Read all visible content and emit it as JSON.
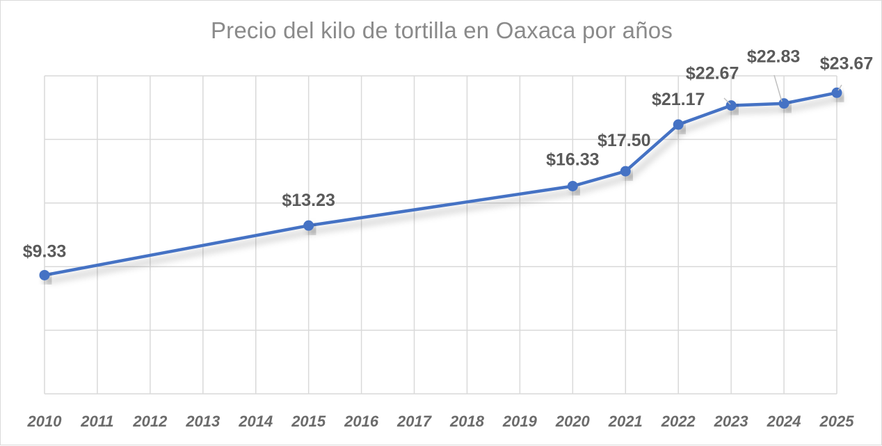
{
  "chart_data": {
    "type": "line",
    "title": "Precio del kilo de tortilla en Oaxaca por años",
    "xlabel": "",
    "ylabel": "",
    "categories": [
      "2010",
      "2011",
      "2012",
      "2013",
      "2014",
      "2015",
      "2016",
      "2017",
      "2018",
      "2019",
      "2020",
      "2021",
      "2022",
      "2023",
      "2024",
      "2025"
    ],
    "points": [
      {
        "x": "2010",
        "y": 9.33,
        "label": "$9.33"
      },
      {
        "x": "2015",
        "y": 13.23,
        "label": "$13.23"
      },
      {
        "x": "2020",
        "y": 16.33,
        "label": "$16.33"
      },
      {
        "x": "2021",
        "y": 17.5,
        "label": "$17.50"
      },
      {
        "x": "2022",
        "y": 21.17,
        "label": "$21.17"
      },
      {
        "x": "2023",
        "y": 22.67,
        "label": "$22.67"
      },
      {
        "x": "2024",
        "y": 22.83,
        "label": "$22.83"
      },
      {
        "x": "2025",
        "y": 23.67,
        "label": "$23.67"
      }
    ],
    "ylim": [
      0,
      25
    ],
    "y_gridline_step": 5,
    "y_tick_labels_shown": false,
    "grid": true,
    "legend": "none",
    "series_color": "#4472c4",
    "grid_color": "#d9d9d9"
  }
}
